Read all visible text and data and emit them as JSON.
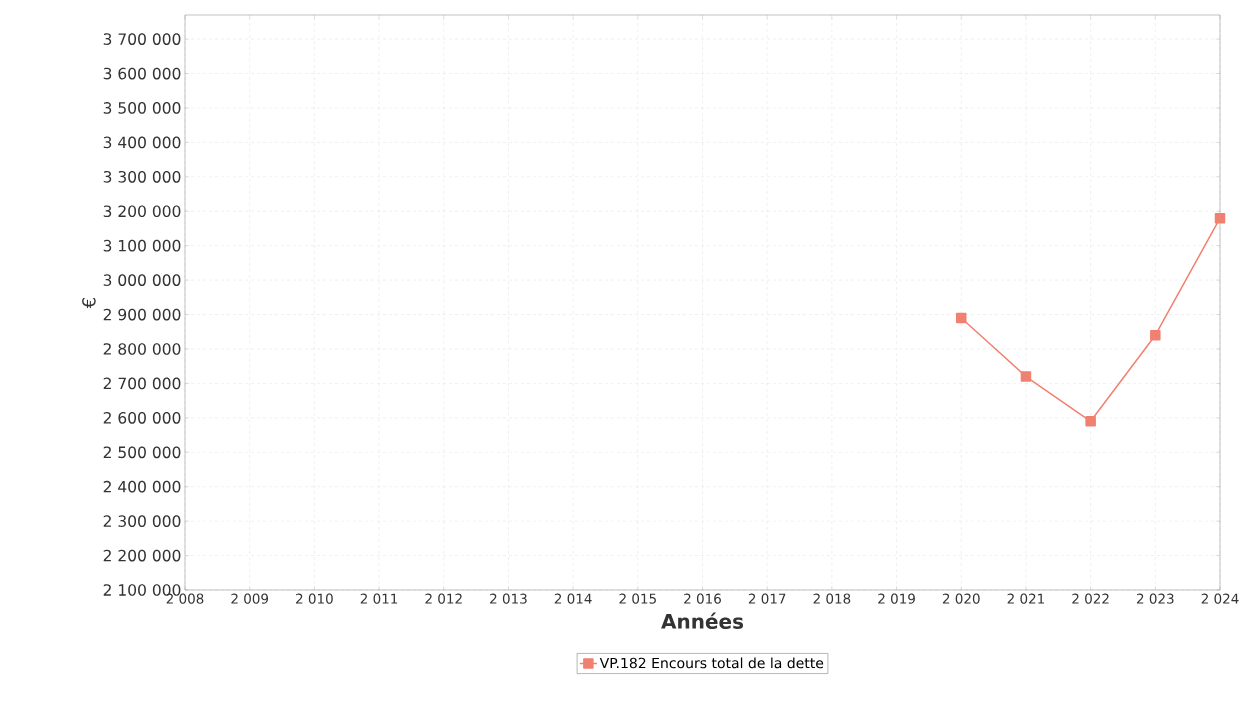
{
  "chart_data": {
    "type": "line",
    "xlabel": "Années",
    "ylabel": "€",
    "x": [
      2020,
      2021,
      2022,
      2023,
      2024
    ],
    "series": [
      {
        "name": "VP.182 Encours total de la dette",
        "color": "#f08070",
        "values": [
          2890000,
          2720000,
          2590000,
          2840000,
          3180000
        ]
      }
    ],
    "xlim": [
      2008,
      2024
    ],
    "xticks": [
      {
        "value": 2008,
        "label": "2 008"
      },
      {
        "value": 2009,
        "label": "2 009"
      },
      {
        "value": 2010,
        "label": "2 010"
      },
      {
        "value": 2011,
        "label": "2 011"
      },
      {
        "value": 2012,
        "label": "2 012"
      },
      {
        "value": 2013,
        "label": "2 013"
      },
      {
        "value": 2014,
        "label": "2 014"
      },
      {
        "value": 2015,
        "label": "2 015"
      },
      {
        "value": 2016,
        "label": "2 016"
      },
      {
        "value": 2017,
        "label": "2 017"
      },
      {
        "value": 2018,
        "label": "2 018"
      },
      {
        "value": 2019,
        "label": "2 019"
      },
      {
        "value": 2020,
        "label": "2 020"
      },
      {
        "value": 2021,
        "label": "2 021"
      },
      {
        "value": 2022,
        "label": "2 022"
      },
      {
        "value": 2023,
        "label": "2 023"
      },
      {
        "value": 2024,
        "label": "2 024"
      }
    ],
    "ylim": [
      2100000,
      3770000
    ],
    "yticks": [
      {
        "value": 2100000,
        "label": "2 100 000"
      },
      {
        "value": 2200000,
        "label": "2 200 000"
      },
      {
        "value": 2300000,
        "label": "2 300 000"
      },
      {
        "value": 2400000,
        "label": "2 400 000"
      },
      {
        "value": 2500000,
        "label": "2 500 000"
      },
      {
        "value": 2600000,
        "label": "2 600 000"
      },
      {
        "value": 2700000,
        "label": "2 700 000"
      },
      {
        "value": 2800000,
        "label": "2 800 000"
      },
      {
        "value": 2900000,
        "label": "2 900 000"
      },
      {
        "value": 3000000,
        "label": "3 000 000"
      },
      {
        "value": 3100000,
        "label": "3 100 000"
      },
      {
        "value": 3200000,
        "label": "3 200 000"
      },
      {
        "value": 3300000,
        "label": "3 300 000"
      },
      {
        "value": 3400000,
        "label": "3 400 000"
      },
      {
        "value": 3500000,
        "label": "3 500 000"
      },
      {
        "value": 3600000,
        "label": "3 600 000"
      },
      {
        "value": 3700000,
        "label": "3 700 000"
      }
    ],
    "grid": true,
    "legend": "bottom",
    "marker": "square",
    "line_style": "solid"
  }
}
